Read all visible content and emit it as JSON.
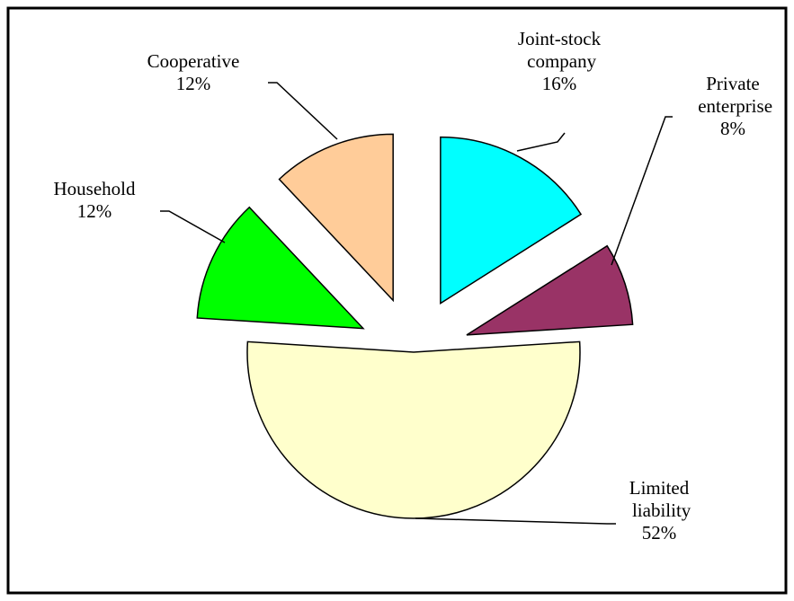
{
  "chart_data": {
    "type": "pie",
    "categories": [
      "Joint-stock company",
      "Private enterprise",
      "Limited liability",
      "Household",
      "Cooperative"
    ],
    "values": [
      16,
      8,
      52,
      12,
      12
    ],
    "value_labels": [
      "16%",
      "8%",
      "52%",
      "12%",
      "12%"
    ],
    "colors": [
      "#00ffff",
      "#993366",
      "#ffffcc",
      "#00ff00",
      "#ffcc99"
    ]
  }
}
